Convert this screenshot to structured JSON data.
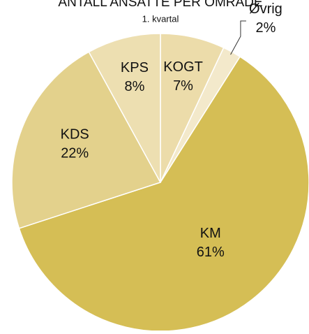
{
  "chart_data": {
    "type": "pie",
    "title": "ANTALL ANSATTE PER OMRÅDE",
    "subtitle": "1. kvartal",
    "categories": [
      "KOGT",
      "Øvrig",
      "KM",
      "KDS",
      "KPS"
    ],
    "values": [
      7,
      2,
      61,
      22,
      8
    ],
    "value_labels": [
      "7%",
      "2%",
      "61%",
      "22%",
      "8%"
    ],
    "colors": [
      "#ecdcaa",
      "#f3e9cb",
      "#d5be55",
      "#e3d18c",
      "#eddfb1"
    ]
  }
}
